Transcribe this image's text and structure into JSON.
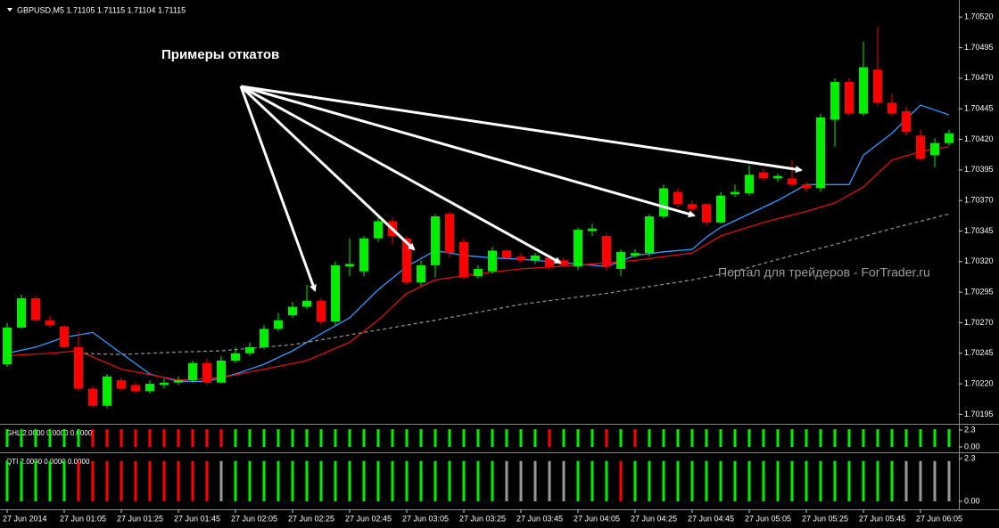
{
  "chart_data": {
    "type": "candlestick",
    "header": "GBPUSD,M5  1.71105 1.71115 1.71104 1.71115",
    "annotation": "Примеры откатов",
    "watermark": "Портал для трейдеров - ForTrader.ru",
    "categories": [
      "27 Jun 2014",
      null,
      null,
      null,
      "27 Jun 01:05",
      null,
      null,
      null,
      "27 Jun 01:25",
      null,
      null,
      null,
      "27 Jun 01:45",
      null,
      null,
      null,
      "27 Jun 02:05",
      null,
      null,
      null,
      "27 Jun 02:25",
      null,
      null,
      null,
      "27 Jun 02:45",
      null,
      null,
      null,
      "27 Jun 03:05",
      null,
      null,
      null,
      "27 Jun 03:25",
      null,
      null,
      null,
      "27 Jun 03:45",
      null,
      null,
      null,
      "27 Jun 04:05",
      null,
      null,
      null,
      "27 Jun 04:25",
      null,
      null,
      null,
      "27 Jun 04:45",
      null,
      null,
      null,
      "27 Jun 05:05",
      null,
      null,
      null,
      "27 Jun 05:25",
      null,
      null,
      null,
      "27 Jun 05:45",
      null,
      null,
      null,
      "27 Jun 06:05",
      null,
      null
    ],
    "open": [
      1.70236,
      1.70266,
      1.7029,
      1.70272,
      1.70267,
      1.7025,
      1.70216,
      1.70202,
      1.70223,
      1.70219,
      1.70214,
      1.70219,
      1.70221,
      1.70223,
      1.70237,
      1.70221,
      1.70239,
      1.70245,
      1.7025,
      1.70265,
      1.70276,
      1.70283,
      1.70288,
      1.70271,
      1.70316,
      1.70312,
      1.70339,
      1.70353,
      1.70339,
      1.70303,
      1.70317,
      1.70359,
      1.70336,
      1.70308,
      1.70312,
      1.70329,
      1.70324,
      1.70321,
      1.70323,
      1.70321,
      1.70316,
      1.70345,
      1.70341,
      1.70314,
      1.70325,
      1.70327,
      1.70357,
      1.70377,
      1.70367,
      1.70367,
      1.70352,
      1.70375,
      1.70376,
      1.70393,
      1.70388,
      1.70388,
      1.70383,
      1.7038,
      1.70436,
      1.70467,
      1.70441,
      1.70477,
      1.7045,
      1.70443,
      1.70423,
      1.70407,
      1.70417
    ],
    "high": [
      1.7027,
      1.70293,
      1.70292,
      1.70276,
      1.70268,
      1.70263,
      1.70218,
      1.70228,
      1.70225,
      1.70221,
      1.70223,
      1.70224,
      1.70226,
      1.70239,
      1.70241,
      1.70243,
      1.7025,
      1.70254,
      1.70268,
      1.70278,
      1.70287,
      1.70301,
      1.7029,
      1.7032,
      1.70339,
      1.70341,
      1.70356,
      1.70356,
      1.70341,
      1.70321,
      1.70359,
      1.70361,
      1.70339,
      1.70317,
      1.70332,
      1.7033,
      1.70327,
      1.70327,
      1.70324,
      1.70323,
      1.70348,
      1.70351,
      1.70343,
      1.7033,
      1.7033,
      1.70359,
      1.70383,
      1.7038,
      1.7037,
      1.70368,
      1.70377,
      1.70383,
      1.70399,
      1.70396,
      1.70392,
      1.70403,
      1.70385,
      1.70441,
      1.7047,
      1.7047,
      1.705,
      1.70512,
      1.70457,
      1.70447,
      1.70428,
      1.70421,
      1.70428
    ],
    "low": [
      1.70234,
      1.70265,
      1.70271,
      1.70266,
      1.70249,
      1.70214,
      1.702,
      1.702,
      1.70214,
      1.70212,
      1.70212,
      1.70216,
      1.70219,
      1.70221,
      1.70219,
      1.7022,
      1.70237,
      1.70243,
      1.70248,
      1.70263,
      1.70274,
      1.70281,
      1.70268,
      1.70268,
      1.70308,
      1.70308,
      1.70336,
      1.70334,
      1.70301,
      1.703,
      1.70307,
      1.70323,
      1.70305,
      1.70306,
      1.7031,
      1.70321,
      1.70319,
      1.70318,
      1.70313,
      1.70316,
      1.70313,
      1.70341,
      1.70313,
      1.70308,
      1.70323,
      1.70324,
      1.70355,
      1.70364,
      1.70361,
      1.7035,
      1.70351,
      1.70373,
      1.70374,
      1.70386,
      1.70385,
      1.70381,
      1.70377,
      1.70377,
      1.70414,
      1.70439,
      1.70439,
      1.70448,
      1.70439,
      1.70423,
      1.70403,
      1.70397,
      1.70415
    ],
    "close": [
      1.70266,
      1.7029,
      1.70272,
      1.70268,
      1.7025,
      1.70216,
      1.70202,
      1.70226,
      1.70216,
      1.70214,
      1.7022,
      1.70221,
      1.70223,
      1.70237,
      1.70221,
      1.70239,
      1.70245,
      1.7025,
      1.70265,
      1.70272,
      1.70283,
      1.70288,
      1.70271,
      1.70317,
      1.70318,
      1.70339,
      1.70353,
      1.70341,
      1.70303,
      1.70317,
      1.70357,
      1.70327,
      1.70307,
      1.70314,
      1.70329,
      1.70323,
      1.70321,
      1.70325,
      1.70316,
      1.70317,
      1.70346,
      1.70347,
      1.70316,
      1.70328,
      1.70327,
      1.70357,
      1.7038,
      1.70367,
      1.70363,
      1.70352,
      1.70374,
      1.70377,
      1.70391,
      1.70388,
      1.7039,
      1.70383,
      1.7038,
      1.70438,
      1.70467,
      1.70441,
      1.70479,
      1.7045,
      1.70441,
      1.70426,
      1.70404,
      1.70417,
      1.70425
    ],
    "up_color": "#00ee00",
    "down_color": "#ff0000",
    "ylim": [
      1.70188,
      1.70534
    ],
    "yticks": [
      {
        "value": 1.7052,
        "label": "1.70520"
      },
      {
        "value": 1.70495,
        "label": "1.70495"
      },
      {
        "value": 1.7047,
        "label": "1.70470"
      },
      {
        "value": 1.70445,
        "label": "1.70445"
      },
      {
        "value": 1.7042,
        "label": "1.70420"
      },
      {
        "value": 1.70395,
        "label": "1.70395"
      },
      {
        "value": 1.7037,
        "label": "1.70370"
      },
      {
        "value": 1.70345,
        "label": "1.70345"
      },
      {
        "value": 1.7032,
        "label": "1.70320"
      },
      {
        "value": 1.70295,
        "label": "1.70295"
      },
      {
        "value": 1.7027,
        "label": "1.70270"
      },
      {
        "value": 1.70245,
        "label": "1.70245"
      },
      {
        "value": 1.7022,
        "label": "1.70220"
      },
      {
        "value": 1.70195,
        "label": "1.70195"
      }
    ],
    "lines": [
      {
        "color": "#3399ff",
        "dashed": false,
        "x": [
          0,
          2,
          4,
          6,
          8,
          10,
          12,
          14,
          16,
          18,
          20,
          22,
          24,
          26,
          28,
          30,
          32,
          34,
          36,
          38,
          40,
          42,
          44,
          46,
          48,
          49,
          50,
          52,
          54,
          56,
          58,
          59,
          60,
          62,
          64,
          66
        ],
        "values": [
          1.70245,
          1.7025,
          1.70258,
          1.70262,
          1.70245,
          1.70228,
          1.70222,
          1.70222,
          1.70228,
          1.70236,
          1.70247,
          1.70261,
          1.70274,
          1.70297,
          1.70316,
          1.70329,
          1.70325,
          1.70323,
          1.70322,
          1.7032,
          1.70318,
          1.70316,
          1.70325,
          1.70328,
          1.7033,
          1.7034,
          1.70348,
          1.70359,
          1.7037,
          1.70383,
          1.70383,
          1.70383,
          1.70407,
          1.70425,
          1.70448,
          1.7044
        ]
      },
      {
        "color": "#dd1111",
        "dashed": false,
        "x": [
          0,
          3,
          5,
          8,
          12,
          15,
          18,
          21,
          24,
          26,
          28,
          30,
          33,
          36,
          40,
          44,
          48,
          50,
          53,
          56,
          58,
          60,
          62,
          64,
          66
        ],
        "values": [
          1.70243,
          1.70245,
          1.70247,
          1.70232,
          1.70223,
          1.70225,
          1.70232,
          1.70239,
          1.70254,
          1.70272,
          1.70294,
          1.70305,
          1.7031,
          1.70314,
          1.70317,
          1.70321,
          1.70327,
          1.70341,
          1.70352,
          1.70361,
          1.70368,
          1.70381,
          1.70403,
          1.7041,
          1.70414
        ]
      },
      {
        "color": "#8a8a8a",
        "dashed": true,
        "x": [
          5,
          8,
          12,
          15,
          20,
          25,
          30,
          36,
          42,
          48,
          51,
          55,
          58,
          62,
          66
        ],
        "values": [
          1.70245,
          1.70244,
          1.70246,
          1.70247,
          1.70252,
          1.70262,
          1.70272,
          1.70285,
          1.70294,
          1.70305,
          1.70312,
          1.70325,
          1.70334,
          1.70347,
          1.70359
        ]
      }
    ],
    "panels": [
      {
        "type": "histogram",
        "label": "GHL 2.0000 0.0000 0.0000",
        "ylim": [
          0,
          2.3
        ],
        "yticks": [
          2.3,
          {
            "value": 0,
            "label": "0.00"
          }
        ],
        "values": [
          2,
          2,
          2,
          2,
          2,
          2,
          2,
          2,
          2,
          2,
          2,
          2,
          2,
          2,
          2,
          2,
          2,
          2,
          2,
          2,
          2,
          2,
          2,
          2,
          2,
          2,
          2,
          2,
          2,
          2,
          2,
          2,
          2,
          2,
          2,
          2,
          2,
          2,
          2,
          2,
          2,
          2,
          2,
          2,
          2,
          2,
          2,
          2,
          2,
          2,
          2,
          2,
          2,
          2,
          2,
          2,
          2,
          2,
          2,
          2,
          2,
          2,
          2,
          2,
          2,
          2,
          2
        ],
        "colors": [
          "#00ee00",
          "#00ee00",
          "#00ee00",
          "#00ee00",
          "#00ee00",
          "#00ee00",
          "#ff0000",
          "#ff0000",
          "#ff0000",
          "#ff0000",
          "#ff0000",
          "#ff0000",
          "#ff0000",
          "#ff0000",
          "#ff0000",
          "#ff0000",
          "#00ee00",
          "#00ee00",
          "#00ee00",
          "#00ee00",
          "#00ee00",
          "#00ee00",
          "#00ee00",
          "#00ee00",
          "#00ee00",
          "#00ee00",
          "#00ee00",
          "#00ee00",
          "#00ee00",
          "#00ee00",
          "#00ee00",
          "#00ee00",
          "#00ee00",
          "#00ee00",
          "#00ee00",
          "#00ee00",
          "#00ee00",
          "#00ee00",
          "#ff0000",
          "#00ee00",
          "#00ee00",
          "#00ee00",
          "#ff0000",
          "#00ee00",
          "#ff0000",
          "#00ee00",
          "#00ee00",
          "#00ee00",
          "#00ee00",
          "#00ee00",
          "#00ee00",
          "#00ee00",
          "#00ee00",
          "#00ee00",
          "#00ee00",
          "#00ee00",
          "#00ee00",
          "#00ee00",
          "#00ee00",
          "#00ee00",
          "#00ee00",
          "#00ee00",
          "#00ee00",
          "#00ee00",
          "#00ee00",
          "#00ee00",
          "#00ee00"
        ]
      },
      {
        "type": "histogram",
        "label": "QTI 2.0000 0.0000 0.0000",
        "ylim": [
          0,
          2.3
        ],
        "yticks": [
          2.3,
          {
            "value": 0,
            "label": "0.00"
          }
        ],
        "values": [
          2,
          2,
          2,
          2,
          2,
          2,
          2,
          2,
          2,
          2,
          2,
          2,
          2,
          2,
          2,
          2,
          2,
          2,
          2,
          2,
          2,
          2,
          2,
          2,
          2,
          2,
          2,
          2,
          2,
          2,
          2,
          2,
          2,
          2,
          2,
          2,
          2,
          2,
          2,
          2,
          2,
          2,
          2,
          2,
          2,
          2,
          2,
          2,
          2,
          2,
          2,
          2,
          2,
          2,
          2,
          2,
          2,
          2,
          2,
          2,
          2,
          2,
          2,
          2,
          2,
          2,
          2
        ],
        "colors": [
          "#00ee00",
          "#00ee00",
          "#00ee00",
          "#00ee00",
          "#00ee00",
          "#ff0000",
          "#ff0000",
          "#ff0000",
          "#ff0000",
          "#ff0000",
          "#ff0000",
          "#ff0000",
          "#ff0000",
          "#ff0000",
          "#ff0000",
          "#999999",
          "#00ee00",
          "#00ee00",
          "#00ee00",
          "#00ee00",
          "#00ee00",
          "#00ee00",
          "#00ee00",
          "#00ee00",
          "#00ee00",
          "#00ee00",
          "#00ee00",
          "#00ee00",
          "#00ee00",
          "#00ee00",
          "#00ee00",
          "#00ee00",
          "#00ee00",
          "#00ee00",
          "#00ee00",
          "#999999",
          "#999999",
          "#999999",
          "#999999",
          "#999999",
          "#00ee00",
          "#00ee00",
          "#00ee00",
          "#ff0000",
          "#00ee00",
          "#00ee00",
          "#00ee00",
          "#00ee00",
          "#00ee00",
          "#00ee00",
          "#00ee00",
          "#00ee00",
          "#00ee00",
          "#00ee00",
          "#00ee00",
          "#00ee00",
          "#00ee00",
          "#00ee00",
          "#00ee00",
          "#00ee00",
          "#00ee00",
          "#00ee00",
          "#00ee00",
          "#999999",
          "#999999",
          "#999999",
          "#999999"
        ]
      }
    ]
  }
}
